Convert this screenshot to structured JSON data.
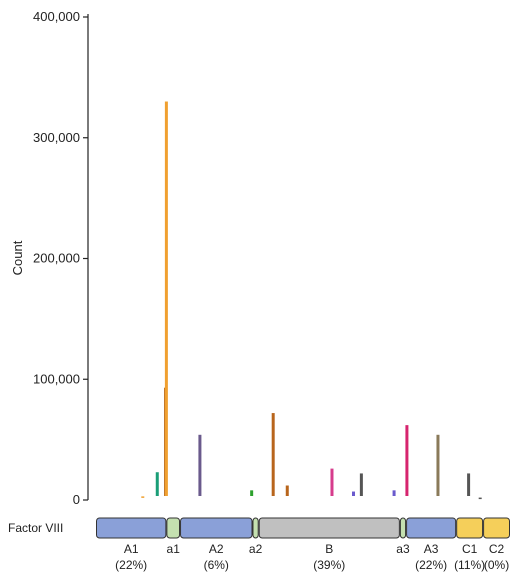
{
  "chart_data": {
    "type": "bar",
    "ylabel": "Count",
    "ylim": [
      0,
      400000
    ],
    "yticks": [
      "0",
      "100,000",
      "200,000",
      "300,000",
      "400,000"
    ],
    "ytick_values": [
      0,
      100000,
      200000,
      300000,
      400000
    ],
    "bars": [
      {
        "pos": 0.113,
        "value": 3000,
        "color": "#f0a030"
      },
      {
        "pos": 0.148,
        "value": 23000,
        "color": "#1a9e77"
      },
      {
        "pos": 0.168,
        "value": 93000,
        "color": "#b86a1c"
      },
      {
        "pos": 0.17,
        "value": 330000,
        "color": "#f0a030"
      },
      {
        "pos": 0.251,
        "value": 54000,
        "color": "#6a5a8c"
      },
      {
        "pos": 0.376,
        "value": 8000,
        "color": "#2ca02c"
      },
      {
        "pos": 0.428,
        "value": 72000,
        "color": "#b8651c"
      },
      {
        "pos": 0.462,
        "value": 12000,
        "color": "#b8651c"
      },
      {
        "pos": 0.57,
        "value": 26000,
        "color": "#d63c8c"
      },
      {
        "pos": 0.622,
        "value": 7000,
        "color": "#6a5acd"
      },
      {
        "pos": 0.641,
        "value": 22000,
        "color": "#555555"
      },
      {
        "pos": 0.72,
        "value": 8000,
        "color": "#6a5acd"
      },
      {
        "pos": 0.751,
        "value": 62000,
        "color": "#d6246e"
      },
      {
        "pos": 0.826,
        "value": 54000,
        "color": "#8a7a5a"
      },
      {
        "pos": 0.9,
        "value": 22000,
        "color": "#555555"
      },
      {
        "pos": 0.928,
        "value": 2000,
        "color": "#555555"
      }
    ]
  },
  "track": {
    "label": "Factor VIII",
    "domains": [
      {
        "name": "A1",
        "pct": "(22%)",
        "start": 0.0,
        "end": 0.17,
        "color": "#8aa0d8"
      },
      {
        "name": "a1",
        "pct": "",
        "start": 0.17,
        "end": 0.203,
        "color": "#c4e0b0"
      },
      {
        "name": "A2",
        "pct": "(6%)",
        "start": 0.203,
        "end": 0.378,
        "color": "#8aa0d8"
      },
      {
        "name": "a2",
        "pct": "",
        "start": 0.378,
        "end": 0.393,
        "color": "#c4e0b0"
      },
      {
        "name": "B",
        "pct": "(39%)",
        "start": 0.393,
        "end": 0.734,
        "color": "#c0c0c0"
      },
      {
        "name": "a3",
        "pct": "",
        "start": 0.734,
        "end": 0.749,
        "color": "#c4e0b0"
      },
      {
        "name": "A3",
        "pct": "(22%)",
        "start": 0.749,
        "end": 0.87,
        "color": "#8aa0d8"
      },
      {
        "name": "C1",
        "pct": "(11%)",
        "start": 0.87,
        "end": 0.935,
        "color": "#f5cf5a"
      },
      {
        "name": "C2",
        "pct": "(0%)",
        "start": 0.935,
        "end": 1.0,
        "color": "#f5cf5a"
      }
    ]
  }
}
